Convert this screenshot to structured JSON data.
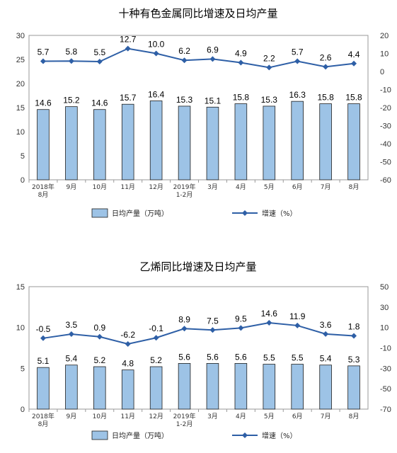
{
  "chart_data": [
    {
      "type": "bar+line",
      "title": "十种有色金属同比增速及日均产量",
      "categories": [
        [
          "2018年",
          "8月"
        ],
        [
          "9月"
        ],
        [
          "10月"
        ],
        [
          "11月"
        ],
        [
          "12月"
        ],
        [
          "2019年",
          "1-2月"
        ],
        [
          "3月"
        ],
        [
          "4月"
        ],
        [
          "5月"
        ],
        [
          "6月"
        ],
        [
          "7月"
        ],
        [
          "8月"
        ]
      ],
      "series": [
        {
          "name": "日均产量（万吨）",
          "type": "bar",
          "axis": "left",
          "values": [
            14.6,
            15.2,
            14.6,
            15.7,
            16.4,
            15.3,
            15.1,
            15.8,
            15.3,
            16.3,
            15.8,
            15.8
          ]
        },
        {
          "name": "增速（%）",
          "type": "line",
          "axis": "right",
          "values": [
            5.7,
            5.8,
            5.5,
            12.7,
            10.0,
            6.2,
            6.9,
            4.9,
            2.2,
            5.7,
            2.6,
            4.4
          ]
        }
      ],
      "left_axis": {
        "ylim": [
          0,
          30
        ],
        "ticks": [
          0,
          5,
          10,
          15,
          20,
          25,
          30
        ]
      },
      "right_axis": {
        "ylim": [
          -60,
          20
        ],
        "ticks": [
          -60,
          -50,
          -40,
          -30,
          -20,
          -10,
          0,
          10,
          20
        ]
      },
      "legend_position": "bottom",
      "colors": {
        "bar_fill": "#9dc3e6",
        "bar_stroke": "#1f1f1f",
        "line": "#2e5fa6"
      }
    },
    {
      "type": "bar+line",
      "title": "乙烯同比增速及日均产量",
      "categories": [
        [
          "2018年",
          "8月"
        ],
        [
          "9月"
        ],
        [
          "10月"
        ],
        [
          "11月"
        ],
        [
          "12月"
        ],
        [
          "2019年",
          "1-2月"
        ],
        [
          "3月"
        ],
        [
          "4月"
        ],
        [
          "5月"
        ],
        [
          "6月"
        ],
        [
          "7月"
        ],
        [
          "8月"
        ]
      ],
      "series": [
        {
          "name": "日均产量（万吨）",
          "type": "bar",
          "axis": "left",
          "values": [
            5.1,
            5.4,
            5.2,
            4.8,
            5.2,
            5.6,
            5.6,
            5.6,
            5.5,
            5.5,
            5.4,
            5.3
          ]
        },
        {
          "name": "增速（%）",
          "type": "line",
          "axis": "right",
          "values": [
            -0.5,
            3.5,
            0.9,
            -6.2,
            -0.1,
            8.9,
            7.5,
            9.5,
            14.6,
            11.9,
            3.6,
            1.8
          ]
        }
      ],
      "left_axis": {
        "ylim": [
          0,
          15
        ],
        "ticks": [
          0,
          5,
          10,
          15
        ]
      },
      "right_axis": {
        "ylim": [
          -70,
          50
        ],
        "ticks": [
          -70,
          -50,
          -30,
          -10,
          10,
          30,
          50
        ]
      },
      "legend_position": "bottom",
      "colors": {
        "bar_fill": "#9dc3e6",
        "bar_stroke": "#1f1f1f",
        "line": "#2e5fa6"
      }
    }
  ]
}
